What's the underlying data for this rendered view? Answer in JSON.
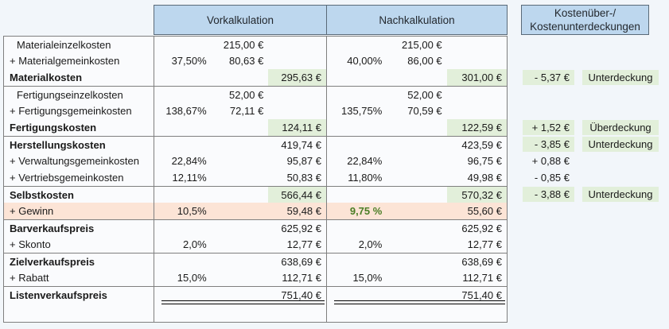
{
  "header": {
    "vorkalkulation": "Vorkalkulation",
    "nachkalkulation": "Nachkalkulation",
    "deckung_line1": "Kostenüber-/",
    "deckung_line2": "Kostenunterdeckungen"
  },
  "colors": {
    "header_fill": "#bdd7ee",
    "header_border": "#5a6a78",
    "table_border": "#7f7f7f",
    "highlight_green": "#e2efda",
    "highlight_peach": "#fce4d6",
    "green_text": "#4a7d25",
    "cell_background": "#fafbfd",
    "page_background": "#f2f6fa",
    "text": "#1a1a1a"
  },
  "rows": [
    {
      "label": "Materialeinzelkosten",
      "indent": true,
      "vor": {
        "amount": "215,00 €"
      },
      "nach": {
        "amount": "215,00 €"
      }
    },
    {
      "label": "+ Materialgemeinkosten",
      "vor": {
        "pct": "37,50%",
        "amount": "80,63 €"
      },
      "nach": {
        "pct": "40,00%",
        "amount": "86,00 €"
      }
    },
    {
      "label": "Materialkosten",
      "bold": true,
      "vor": {
        "total": "295,63 €",
        "total_green": true
      },
      "nach": {
        "total": "301,00 €",
        "total_green": true
      },
      "diff": {
        "amount": "- 5,37 €",
        "amount_green": true,
        "label": "Unterdeckung"
      }
    },
    {
      "label": "Fertigungseinzelkosten",
      "indent": true,
      "group_start": true,
      "vor": {
        "amount": "52,00 €"
      },
      "nach": {
        "amount": "52,00 €"
      }
    },
    {
      "label": "+ Fertigungsgemeinkosten",
      "vor": {
        "pct": "138,67%",
        "amount": "72,11 €"
      },
      "nach": {
        "pct": "135,75%",
        "amount": "70,59 €"
      }
    },
    {
      "label": "Fertigungskosten",
      "bold": true,
      "vor": {
        "total": "124,11 €",
        "total_green": true
      },
      "nach": {
        "total": "122,59 €",
        "total_green": true
      },
      "diff": {
        "amount": "+ 1,52 €",
        "amount_green": true,
        "label": "Überdeckung"
      }
    },
    {
      "label": "Herstellungskosten",
      "bold": true,
      "group_start": true,
      "vor": {
        "total": "419,74 €"
      },
      "nach": {
        "total": "423,59 €"
      },
      "diff": {
        "amount": "- 3,85 €",
        "amount_green": true,
        "label": "Unterdeckung"
      }
    },
    {
      "label": "+ Verwaltungsgemeinkosten",
      "vor": {
        "pct": "22,84%",
        "total": "95,87 €"
      },
      "nach": {
        "pct": "22,84%",
        "total": "96,75 €"
      },
      "diff": {
        "amount": "+ 0,88 €"
      }
    },
    {
      "label": "+ Vertriebsgemeinkosten",
      "vor": {
        "pct": "12,11%",
        "total": "50,83 €"
      },
      "nach": {
        "pct": "11,80%",
        "total": "49,98 €"
      },
      "diff": {
        "amount": "- 0,85 €"
      }
    },
    {
      "label": "Selbstkosten",
      "bold": true,
      "group_start": true,
      "vor": {
        "total": "566,44 €",
        "total_green": true
      },
      "nach": {
        "total": "570,32 €",
        "total_green": true
      },
      "diff": {
        "amount": "- 3,88 €",
        "amount_green": true,
        "label": "Unterdeckung"
      }
    },
    {
      "label": "+ Gewinn",
      "peach": true,
      "vor": {
        "pct": "10,5%",
        "total": "59,48 €"
      },
      "nach": {
        "pct": "9,75 %",
        "pct_green_bold": true,
        "total": "55,60 €"
      }
    },
    {
      "label": "Barverkaufspreis",
      "bold": true,
      "group_start": true,
      "vor": {
        "total": "625,92 €"
      },
      "nach": {
        "total": "625,92 €"
      }
    },
    {
      "label": "+ Skonto",
      "vor": {
        "pct": "2,0%",
        "total": "12,77 €"
      },
      "nach": {
        "pct": "2,0%",
        "total": "12,77 €"
      }
    },
    {
      "label": "Zielverkaufspreis",
      "bold": true,
      "group_start": true,
      "vor": {
        "total": "638,69 €"
      },
      "nach": {
        "total": "638,69 €"
      }
    },
    {
      "label": "+ Rabatt",
      "vor": {
        "pct": "15,0%",
        "total": "112,71 €"
      },
      "nach": {
        "pct": "15,0%",
        "total": "112,71 €"
      }
    },
    {
      "label": "Listenverkaufspreis",
      "bold": true,
      "group_start": true,
      "double_underline": true,
      "vor": {
        "total": "751,40 €"
      },
      "nach": {
        "total": "751,40 €"
      }
    },
    {
      "label": "",
      "empty_row": true
    }
  ]
}
